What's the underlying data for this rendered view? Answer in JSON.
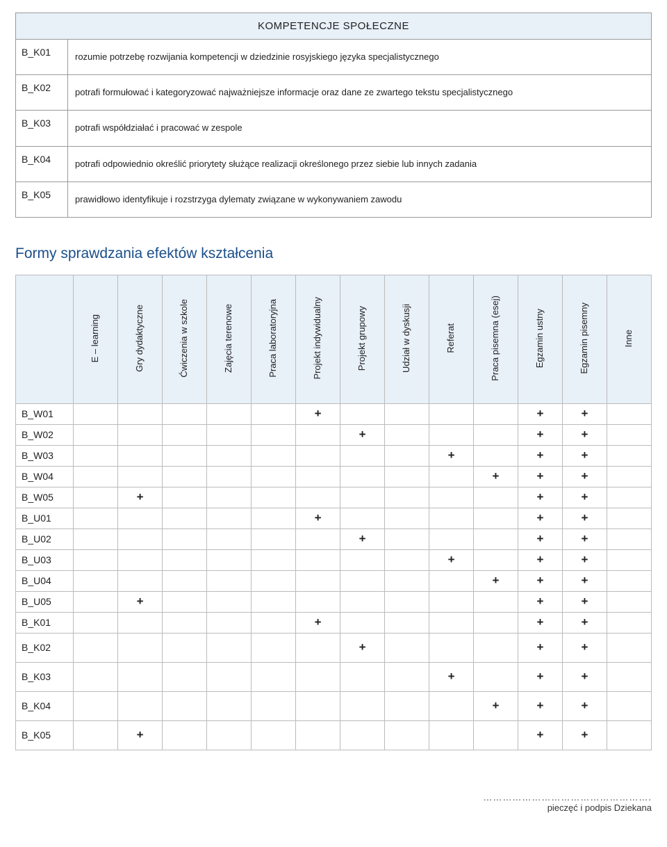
{
  "colors": {
    "header_bg": "#e8f0f8",
    "border": "#999999",
    "matrix_border": "#bbbbbb",
    "heading_text": "#1a4f8a",
    "body_text": "#222222",
    "page_bg": "#ffffff"
  },
  "comp_table": {
    "header": "KOMPETENCJE SPOŁECZNE",
    "rows": [
      {
        "code": "B_K01",
        "desc": "rozumie potrzebę rozwijania kompetencji w dziedzinie rosyjskiego języka specjalistycznego"
      },
      {
        "code": "B_K02",
        "desc": "potrafi formułować i kategoryzować najważniejsze informacje oraz dane ze zwartego tekstu specjalistycznego"
      },
      {
        "code": "B_K03",
        "desc": "potrafi współdziałać i pracować w zespole"
      },
      {
        "code": "B_K04",
        "desc": "potrafi odpowiednio określić priorytety służące realizacji określonego przez siebie lub innych zadania"
      },
      {
        "code": "B_K05",
        "desc": "prawidłowo identyfikuje i rozstrzyga dylematy związane w wykonywaniem zawodu"
      }
    ]
  },
  "section_heading": "Formy sprawdzania efektów kształcenia",
  "matrix": {
    "mark": "+",
    "columns": [
      "E – learning",
      "Gry dydaktyczne",
      "Ćwiczenia w\nszkole",
      "Zajęcia terenowe",
      "Praca\nlaboratoryjna",
      "Projekt\nindywidualny",
      "Projekt grupowy",
      "Udział w dyskusji",
      "Referat",
      "Praca pisemna\n(esej)",
      "Egzamin ustny",
      "Egzamin\npisemny",
      "Inne"
    ],
    "rows": [
      {
        "code": "B_W01",
        "marks": [
          0,
          0,
          0,
          0,
          0,
          1,
          0,
          0,
          0,
          0,
          1,
          1,
          0
        ],
        "tall": false
      },
      {
        "code": "B_W02",
        "marks": [
          0,
          0,
          0,
          0,
          0,
          0,
          1,
          0,
          0,
          0,
          1,
          1,
          0
        ],
        "tall": false
      },
      {
        "code": "B_W03",
        "marks": [
          0,
          0,
          0,
          0,
          0,
          0,
          0,
          0,
          1,
          0,
          1,
          1,
          0
        ],
        "tall": false
      },
      {
        "code": "B_W04",
        "marks": [
          0,
          0,
          0,
          0,
          0,
          0,
          0,
          0,
          0,
          1,
          1,
          1,
          0
        ],
        "tall": false
      },
      {
        "code": "B_W05",
        "marks": [
          0,
          1,
          0,
          0,
          0,
          0,
          0,
          0,
          0,
          0,
          1,
          1,
          0
        ],
        "tall": false
      },
      {
        "code": "B_U01",
        "marks": [
          0,
          0,
          0,
          0,
          0,
          1,
          0,
          0,
          0,
          0,
          1,
          1,
          0
        ],
        "tall": false
      },
      {
        "code": "B_U02",
        "marks": [
          0,
          0,
          0,
          0,
          0,
          0,
          1,
          0,
          0,
          0,
          1,
          1,
          0
        ],
        "tall": false
      },
      {
        "code": "B_U03",
        "marks": [
          0,
          0,
          0,
          0,
          0,
          0,
          0,
          0,
          1,
          0,
          1,
          1,
          0
        ],
        "tall": false
      },
      {
        "code": "B_U04",
        "marks": [
          0,
          0,
          0,
          0,
          0,
          0,
          0,
          0,
          0,
          1,
          1,
          1,
          0
        ],
        "tall": false
      },
      {
        "code": "B_U05",
        "marks": [
          0,
          1,
          0,
          0,
          0,
          0,
          0,
          0,
          0,
          0,
          1,
          1,
          0
        ],
        "tall": false
      },
      {
        "code": "B_K01",
        "marks": [
          0,
          0,
          0,
          0,
          0,
          1,
          0,
          0,
          0,
          0,
          1,
          1,
          0
        ],
        "tall": false
      },
      {
        "code": "B_K02",
        "marks": [
          0,
          0,
          0,
          0,
          0,
          0,
          1,
          0,
          0,
          0,
          1,
          1,
          0
        ],
        "tall": true
      },
      {
        "code": "B_K03",
        "marks": [
          0,
          0,
          0,
          0,
          0,
          0,
          0,
          0,
          1,
          0,
          1,
          1,
          0
        ],
        "tall": true
      },
      {
        "code": "B_K04",
        "marks": [
          0,
          0,
          0,
          0,
          0,
          0,
          0,
          0,
          0,
          1,
          1,
          1,
          0
        ],
        "tall": true
      },
      {
        "code": "B_K05",
        "marks": [
          0,
          1,
          0,
          0,
          0,
          0,
          0,
          0,
          0,
          0,
          1,
          1,
          0
        ],
        "tall": true
      }
    ]
  },
  "footer": {
    "dots": "…………………………………………….",
    "label": "pieczęć i podpis Dziekana"
  }
}
